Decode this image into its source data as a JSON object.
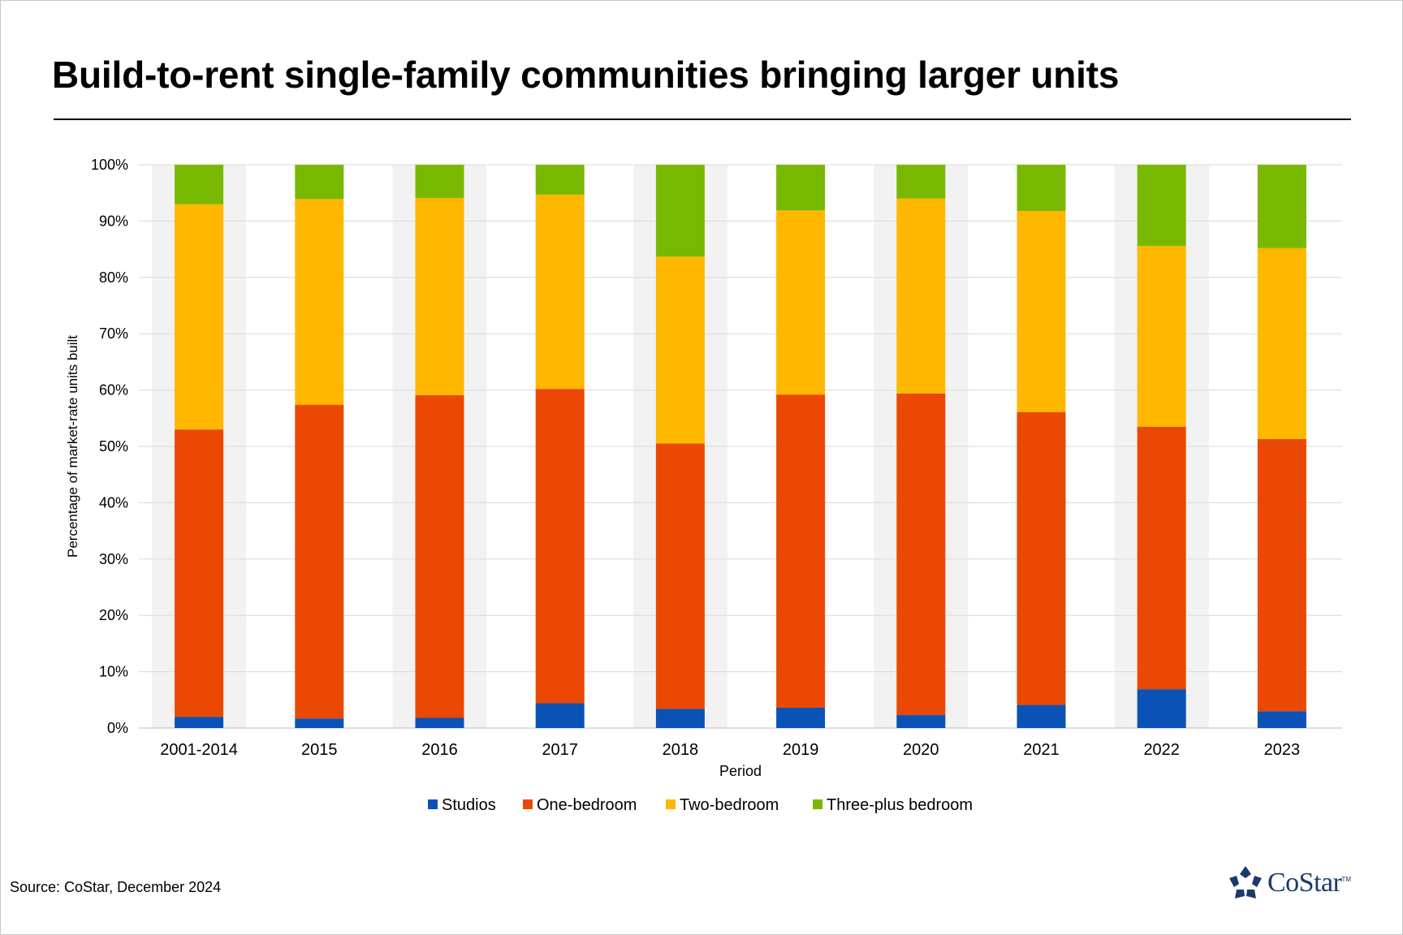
{
  "title": "Build-to-rent single-family communities bringing larger units",
  "source": "Source: CoStar, December 2024",
  "logo": {
    "name": "CoStar",
    "trademark": "TM"
  },
  "chart_data": {
    "type": "bar",
    "stacked": true,
    "categories": [
      "2001-2014",
      "2015",
      "2016",
      "2017",
      "2018",
      "2019",
      "2020",
      "2021",
      "2022",
      "2023"
    ],
    "series": [
      {
        "name": "Studios",
        "color": "#0a52b5",
        "values": [
          2.0,
          1.7,
          1.8,
          4.4,
          3.4,
          3.6,
          2.3,
          4.1,
          6.9,
          3.0
        ]
      },
      {
        "name": "One-bedroom",
        "color": "#ea4803",
        "values": [
          51.0,
          55.7,
          57.3,
          55.8,
          47.1,
          55.6,
          57.1,
          52.0,
          46.6,
          48.3
        ]
      },
      {
        "name": "Two-bedroom",
        "color": "#ffb700",
        "values": [
          40.0,
          36.5,
          35.0,
          34.5,
          33.2,
          32.7,
          34.6,
          35.7,
          32.1,
          33.9
        ]
      },
      {
        "name": "Three-plus bedroom",
        "color": "#79b800",
        "values": [
          7.0,
          6.1,
          5.9,
          5.3,
          16.3,
          8.1,
          6.0,
          8.2,
          14.4,
          14.8
        ]
      }
    ],
    "title": "",
    "xlabel": "Period",
    "ylabel": "Percentage of market-rate units built",
    "ylim": [
      0,
      100
    ],
    "yticks": [
      "0%",
      "10%",
      "20%",
      "30%",
      "40%",
      "50%",
      "60%",
      "70%",
      "80%",
      "90%",
      "100%"
    ],
    "grid": true,
    "legend": "bottom"
  }
}
